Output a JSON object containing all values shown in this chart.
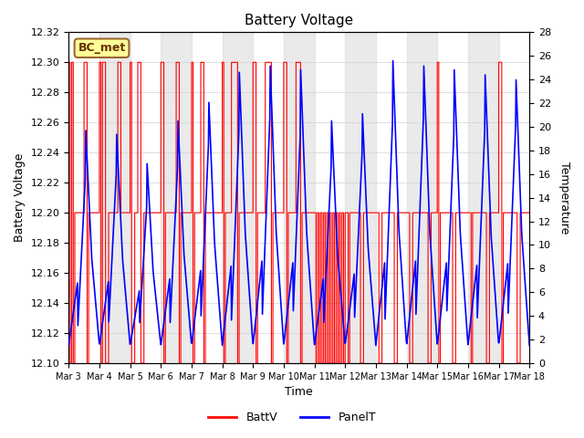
{
  "title": "Battery Voltage",
  "xlabel": "Time",
  "ylabel_left": "Battery Voltage",
  "ylabel_right": "Temperature",
  "ylim_left": [
    12.1,
    12.32
  ],
  "ylim_right": [
    0,
    28
  ],
  "yticks_left": [
    12.1,
    12.12,
    12.14,
    12.16,
    12.18,
    12.2,
    12.22,
    12.24,
    12.26,
    12.28,
    12.3,
    12.32
  ],
  "yticks_right": [
    0,
    2,
    4,
    6,
    8,
    10,
    12,
    14,
    16,
    18,
    20,
    22,
    24,
    26,
    28
  ],
  "xlim": [
    0,
    15
  ],
  "xtick_labels": [
    "Mar 3",
    "Mar 4",
    "Mar 5",
    "Mar 6",
    "Mar 7",
    "Mar 8",
    "Mar 9",
    "Mar 10",
    "Mar 11",
    "Mar 12",
    "Mar 13",
    "Mar 14",
    "Mar 15",
    "Mar 16",
    "Mar 17",
    "Mar 18"
  ],
  "xtick_positions": [
    0,
    1,
    2,
    3,
    4,
    5,
    6,
    7,
    8,
    9,
    10,
    11,
    12,
    13,
    14,
    15
  ],
  "annotation_text": "BC_met",
  "annotation_bg": "#FFFF99",
  "annotation_border": "#996633",
  "batt_color": "#FF0000",
  "panel_color": "#0000FF",
  "bg_band_color": "#DCDCDC",
  "bg_band_alpha": 0.6,
  "legend_labels": [
    "BattV",
    "PanelT"
  ],
  "band_starts": [
    1,
    3,
    5,
    7,
    9,
    11,
    13
  ],
  "band_ends": [
    2,
    4,
    6,
    8,
    10,
    12,
    14
  ]
}
